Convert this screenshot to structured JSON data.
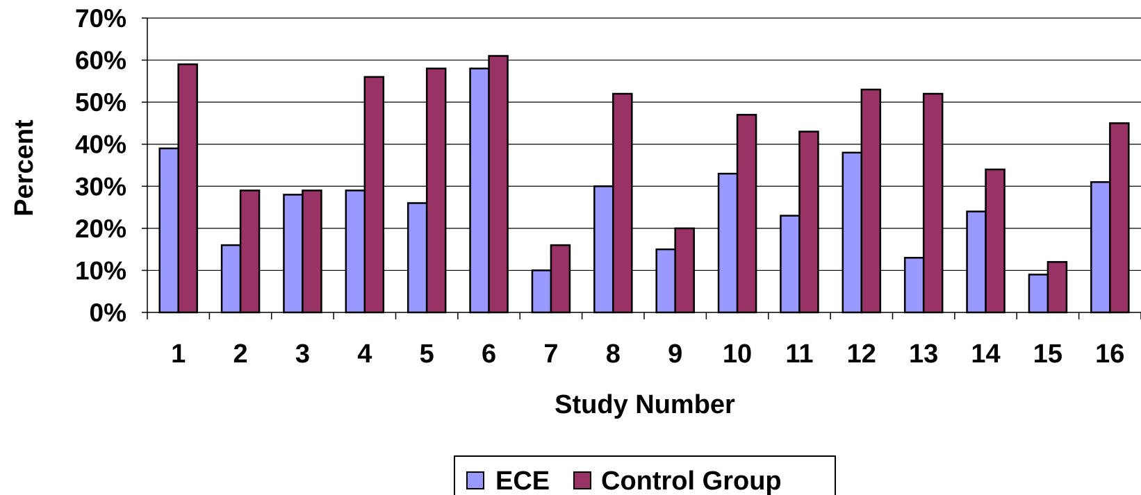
{
  "chart_data": {
    "type": "bar",
    "title": "",
    "xlabel": "Study Number",
    "ylabel": "Percent",
    "ylim": [
      0,
      0.7
    ],
    "yticks": [
      "0%",
      "10%",
      "20%",
      "30%",
      "40%",
      "50%",
      "60%",
      "70%"
    ],
    "categories": [
      "1",
      "2",
      "3",
      "4",
      "5",
      "6",
      "7",
      "8",
      "9",
      "10",
      "11",
      "12",
      "13",
      "14",
      "15",
      "16"
    ],
    "series": [
      {
        "name": "ECE",
        "color": "#9999FF",
        "values": [
          0.39,
          0.16,
          0.28,
          0.29,
          0.26,
          0.58,
          0.1,
          0.3,
          0.15,
          0.33,
          0.23,
          0.38,
          0.13,
          0.24,
          0.09,
          0.31
        ]
      },
      {
        "name": "Control Group",
        "color": "#993366",
        "values": [
          0.59,
          0.29,
          0.29,
          0.56,
          0.58,
          0.61,
          0.16,
          0.52,
          0.2,
          0.47,
          0.43,
          0.53,
          0.52,
          0.34,
          0.12,
          0.45
        ]
      }
    ],
    "grid": true,
    "legend_position": "bottom"
  }
}
